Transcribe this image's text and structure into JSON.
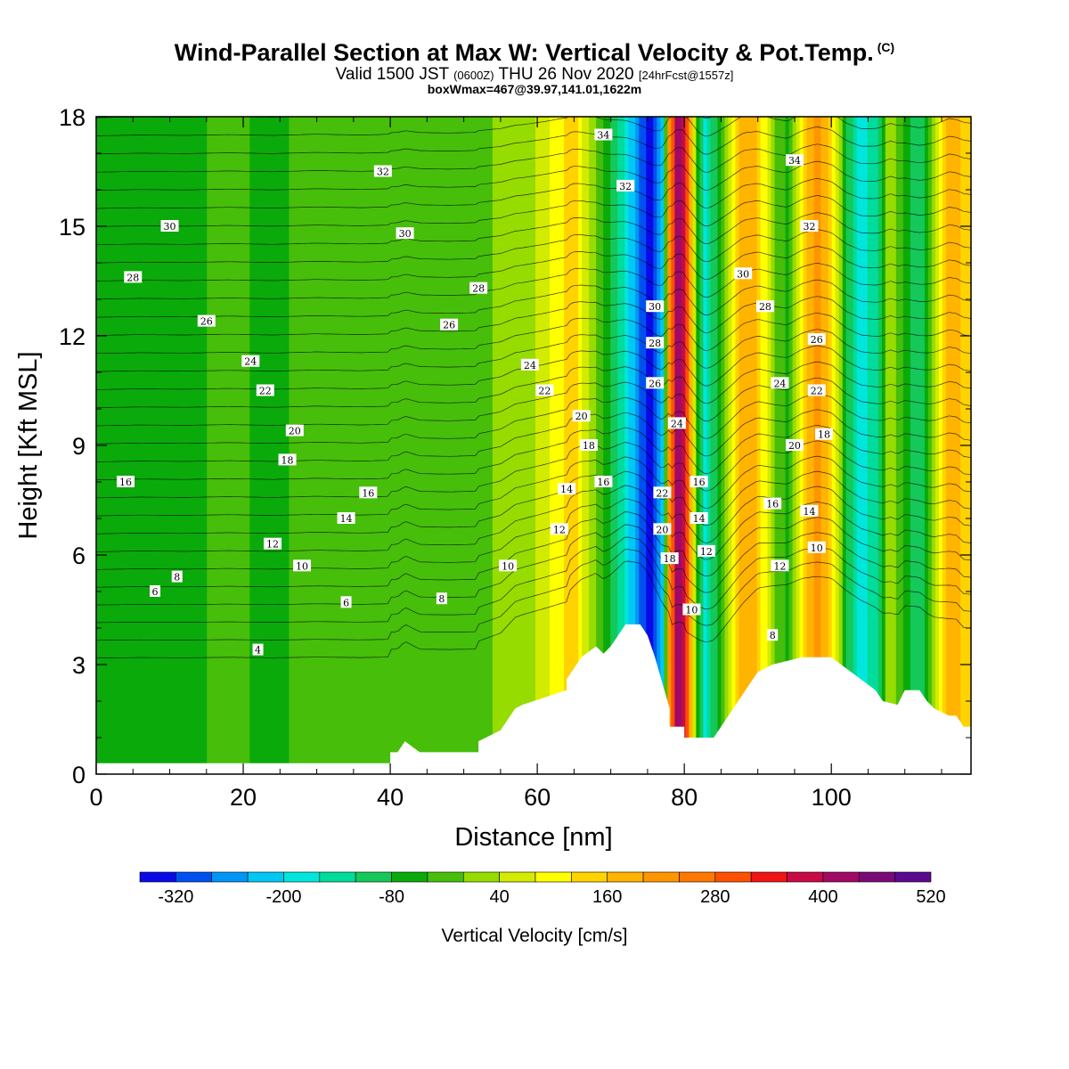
{
  "titles": {
    "main": "Wind-Parallel Section at Max W: Vertical Velocity & Pot.Temp.",
    "copyright": "(C)",
    "valid_prefix": "Valid 1500 JST",
    "valid_utc": "(0600Z)",
    "valid_date": "THU 26 Nov 2020",
    "forecast": "[24hrFcst@1557z]",
    "boxmax": "boxWmax=467@39.97,141.01,1622m"
  },
  "chart_data": {
    "type": "heatmap",
    "title": "Wind-Parallel Section at Max W: Vertical Velocity & Pot.Temp.",
    "xlabel": "Distance [nm]",
    "ylabel": "Height [Kft MSL]",
    "xlim": [
      0,
      119
    ],
    "ylim": [
      0,
      18
    ],
    "x_ticks": [
      "0",
      "20",
      "40",
      "60",
      "80",
      "100"
    ],
    "y_ticks": [
      "0",
      "3",
      "6",
      "9",
      "12",
      "15",
      "18"
    ],
    "colorbar": {
      "label": "Vertical Velocity [cm/s]",
      "min": -360,
      "step": 40,
      "tick_labels": [
        "-320",
        "-200",
        "-80",
        "40",
        "160",
        "280",
        "400",
        "520"
      ],
      "colors": [
        "#0a0ae8",
        "#0050f0",
        "#0096f5",
        "#00c8f5",
        "#00e6dc",
        "#00dc9b",
        "#14c85a",
        "#0aaa0a",
        "#46be0a",
        "#96dc00",
        "#d2eb00",
        "#ffff00",
        "#ffd200",
        "#ffb400",
        "#ff9600",
        "#ff7800",
        "#ff5000",
        "#f01414",
        "#c80a46",
        "#a00a64",
        "#7a0a78",
        "#5a0a8c"
      ]
    },
    "vertical_velocity_profile": {
      "x": [
        0,
        6,
        12,
        18,
        24,
        30,
        36,
        42,
        48,
        54,
        58,
        61,
        63,
        65,
        67,
        69,
        71,
        73,
        74,
        75,
        76,
        77,
        78,
        79,
        80,
        81,
        82,
        83,
        84,
        86,
        88,
        90,
        92,
        94,
        96,
        98,
        100,
        102,
        104,
        106,
        108,
        110,
        112,
        114,
        116,
        119
      ],
      "w": [
        -60,
        -40,
        -50,
        -30,
        -50,
        -20,
        -40,
        -10,
        -30,
        0,
        10,
        60,
        110,
        140,
        30,
        -40,
        -120,
        -220,
        -290,
        -330,
        -320,
        -200,
        220,
        420,
        380,
        160,
        -80,
        -180,
        -100,
        40,
        200,
        160,
        20,
        -60,
        120,
        220,
        140,
        -80,
        -180,
        -140,
        40,
        -60,
        -120,
        20,
        200,
        120
      ]
    },
    "terrain_kft": {
      "x": [
        0,
        40,
        40,
        41,
        42,
        44,
        46,
        52,
        52,
        55,
        56,
        57,
        58,
        64,
        64,
        65,
        66,
        68,
        69,
        70,
        71,
        72,
        73,
        74,
        75,
        76,
        77,
        78,
        78,
        80,
        80,
        82,
        82,
        84,
        85,
        86,
        87,
        88,
        89,
        90,
        92,
        94,
        96,
        98,
        100,
        102,
        104,
        106,
        107,
        109,
        110,
        112,
        113,
        114,
        116,
        117,
        118,
        119
      ],
      "h": [
        0.3,
        0.3,
        0.6,
        0.6,
        0.9,
        0.6,
        0.6,
        0.6,
        0.9,
        1.2,
        1.5,
        1.8,
        1.9,
        2.3,
        2.6,
        2.9,
        3.2,
        3.5,
        3.3,
        3.5,
        3.8,
        4.1,
        4.1,
        4.1,
        3.8,
        3.2,
        2.5,
        1.8,
        1.3,
        1.3,
        1.0,
        1.0,
        1.0,
        1.0,
        1.3,
        1.6,
        1.9,
        2.2,
        2.5,
        2.8,
        3.0,
        3.1,
        3.2,
        3.2,
        3.2,
        2.9,
        2.6,
        2.3,
        2.0,
        1.9,
        2.3,
        2.3,
        2.0,
        1.8,
        1.6,
        1.6,
        1.3,
        1.3
      ]
    },
    "theta_contours": {
      "levels": [
        4,
        6,
        8,
        10,
        12,
        14,
        16,
        18,
        20,
        22,
        24,
        26,
        28,
        30,
        32,
        34
      ],
      "labels": [
        {
          "text": "34",
          "x": 69,
          "y": 17.5
        },
        {
          "text": "32",
          "x": 39,
          "y": 16.5
        },
        {
          "text": "32",
          "x": 72,
          "y": 16.1
        },
        {
          "text": "34",
          "x": 95,
          "y": 16.8
        },
        {
          "text": "30",
          "x": 10,
          "y": 15.0
        },
        {
          "text": "30",
          "x": 42,
          "y": 14.8
        },
        {
          "text": "32",
          "x": 97,
          "y": 15.0
        },
        {
          "text": "28",
          "x": 5,
          "y": 13.6
        },
        {
          "text": "28",
          "x": 52,
          "y": 13.3
        },
        {
          "text": "30",
          "x": 88,
          "y": 13.7
        },
        {
          "text": "30",
          "x": 76,
          "y": 12.8
        },
        {
          "text": "28",
          "x": 91,
          "y": 12.8
        },
        {
          "text": "26",
          "x": 15,
          "y": 12.4
        },
        {
          "text": "26",
          "x": 48,
          "y": 12.3
        },
        {
          "text": "28",
          "x": 76,
          "y": 11.8
        },
        {
          "text": "26",
          "x": 98,
          "y": 11.9
        },
        {
          "text": "24",
          "x": 21,
          "y": 11.3
        },
        {
          "text": "24",
          "x": 59,
          "y": 11.2
        },
        {
          "text": "26",
          "x": 76,
          "y": 10.7
        },
        {
          "text": "24",
          "x": 93,
          "y": 10.7
        },
        {
          "text": "22",
          "x": 23,
          "y": 10.5
        },
        {
          "text": "22",
          "x": 61,
          "y": 10.5
        },
        {
          "text": "22",
          "x": 98,
          "y": 10.5
        },
        {
          "text": "20",
          "x": 66,
          "y": 9.8
        },
        {
          "text": "24",
          "x": 79,
          "y": 9.6
        },
        {
          "text": "20",
          "x": 27,
          "y": 9.4
        },
        {
          "text": "18",
          "x": 99,
          "y": 9.3
        },
        {
          "text": "18",
          "x": 67,
          "y": 9.0
        },
        {
          "text": "20",
          "x": 95,
          "y": 9.0
        },
        {
          "text": "18",
          "x": 26,
          "y": 8.6
        },
        {
          "text": "16",
          "x": 4,
          "y": 8.0
        },
        {
          "text": "16",
          "x": 69,
          "y": 8.0
        },
        {
          "text": "16",
          "x": 82,
          "y": 8.0
        },
        {
          "text": "14",
          "x": 64,
          "y": 7.8
        },
        {
          "text": "16",
          "x": 37,
          "y": 7.7
        },
        {
          "text": "22",
          "x": 77,
          "y": 7.7
        },
        {
          "text": "16",
          "x": 92,
          "y": 7.4
        },
        {
          "text": "14",
          "x": 97,
          "y": 7.2
        },
        {
          "text": "14",
          "x": 34,
          "y": 7.0
        },
        {
          "text": "14",
          "x": 82,
          "y": 7.0
        },
        {
          "text": "20",
          "x": 77,
          "y": 6.7
        },
        {
          "text": "12",
          "x": 63,
          "y": 6.7
        },
        {
          "text": "12",
          "x": 24,
          "y": 6.3
        },
        {
          "text": "12",
          "x": 83,
          "y": 6.1
        },
        {
          "text": "10",
          "x": 98,
          "y": 6.2
        },
        {
          "text": "18",
          "x": 78,
          "y": 5.9
        },
        {
          "text": "10",
          "x": 28,
          "y": 5.7
        },
        {
          "text": "10",
          "x": 56,
          "y": 5.7
        },
        {
          "text": "12",
          "x": 93,
          "y": 5.7
        },
        {
          "text": "8",
          "x": 11,
          "y": 5.4
        },
        {
          "text": "6",
          "x": 8,
          "y": 5.0
        },
        {
          "text": "8",
          "x": 47,
          "y": 4.8
        },
        {
          "text": "6",
          "x": 34,
          "y": 4.7
        },
        {
          "text": "10",
          "x": 81,
          "y": 4.5
        },
        {
          "text": "8",
          "x": 92,
          "y": 3.8
        },
        {
          "text": "4",
          "x": 22,
          "y": 3.4
        }
      ]
    }
  }
}
